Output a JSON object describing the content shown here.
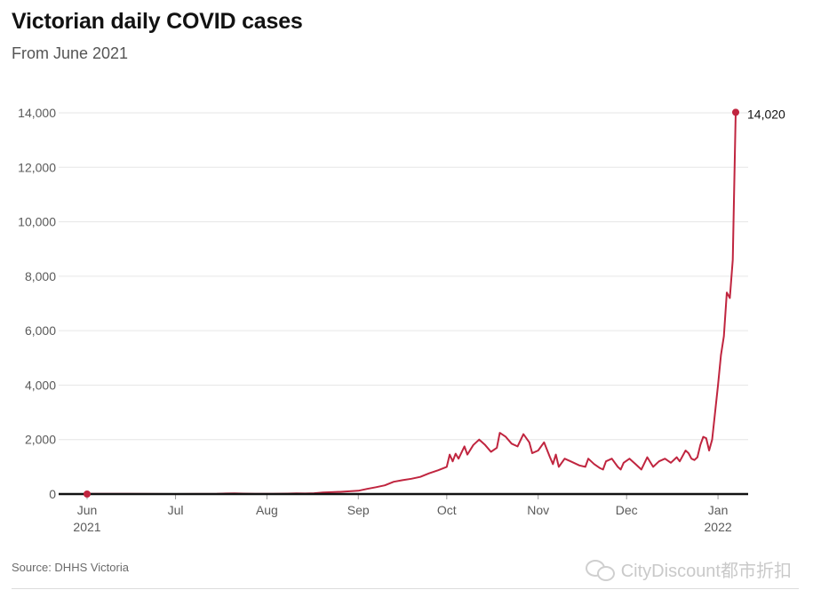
{
  "header": {
    "title": "Victorian daily COVID cases",
    "subtitle": "From June 2021"
  },
  "footer": {
    "source": "Source: DHHS Victoria",
    "watermark": "CityDiscount都市折扣"
  },
  "colors": {
    "line": "#c0253f",
    "grid": "#e6e6e6",
    "axis": "#121212",
    "tick_text": "#5a5a5a"
  },
  "chart_data": {
    "type": "line",
    "title": "Victorian daily COVID cases",
    "subtitle": "From June 2021",
    "xlabel": "",
    "ylabel": "",
    "ylim": [
      0,
      14000
    ],
    "yticks": [
      0,
      2000,
      4000,
      6000,
      8000,
      10000,
      12000,
      14000
    ],
    "ytick_labels": [
      "0",
      "2,000",
      "4,000",
      "6,000",
      "8,000",
      "10,000",
      "12,000",
      "14,000"
    ],
    "xlim": [
      "2021-06-01",
      "2022-01-08"
    ],
    "xticks": [
      {
        "date": "2021-06-01",
        "label": "Jun",
        "sublabel": "2021"
      },
      {
        "date": "2021-07-01",
        "label": "Jul",
        "sublabel": ""
      },
      {
        "date": "2021-08-01",
        "label": "Aug",
        "sublabel": ""
      },
      {
        "date": "2021-09-01",
        "label": "Sep",
        "sublabel": ""
      },
      {
        "date": "2021-10-01",
        "label": "Oct",
        "sublabel": ""
      },
      {
        "date": "2021-11-01",
        "label": "Nov",
        "sublabel": ""
      },
      {
        "date": "2021-12-01",
        "label": "Dec",
        "sublabel": ""
      },
      {
        "date": "2022-01-01",
        "label": "Jan",
        "sublabel": "2022"
      }
    ],
    "grid": true,
    "series": [
      {
        "color": "#c0253f",
        "points": [
          [
            "2021-06-01",
            5
          ],
          [
            "2021-06-15",
            5
          ],
          [
            "2021-07-01",
            0
          ],
          [
            "2021-07-15",
            5
          ],
          [
            "2021-07-18",
            20
          ],
          [
            "2021-07-21",
            25
          ],
          [
            "2021-07-24",
            15
          ],
          [
            "2021-07-28",
            5
          ],
          [
            "2021-08-03",
            5
          ],
          [
            "2021-08-08",
            15
          ],
          [
            "2021-08-11",
            25
          ],
          [
            "2021-08-14",
            20
          ],
          [
            "2021-08-17",
            30
          ],
          [
            "2021-08-20",
            60
          ],
          [
            "2021-08-23",
            70
          ],
          [
            "2021-08-26",
            80
          ],
          [
            "2021-08-29",
            100
          ],
          [
            "2021-09-01",
            120
          ],
          [
            "2021-09-04",
            190
          ],
          [
            "2021-09-07",
            250
          ],
          [
            "2021-09-10",
            320
          ],
          [
            "2021-09-13",
            450
          ],
          [
            "2021-09-16",
            510
          ],
          [
            "2021-09-19",
            560
          ],
          [
            "2021-09-22",
            630
          ],
          [
            "2021-09-25",
            760
          ],
          [
            "2021-09-28",
            870
          ],
          [
            "2021-10-01",
            1000
          ],
          [
            "2021-10-02",
            1450
          ],
          [
            "2021-10-03",
            1200
          ],
          [
            "2021-10-04",
            1480
          ],
          [
            "2021-10-05",
            1300
          ],
          [
            "2021-10-07",
            1750
          ],
          [
            "2021-10-08",
            1450
          ],
          [
            "2021-10-10",
            1800
          ],
          [
            "2021-10-12",
            2000
          ],
          [
            "2021-10-14",
            1800
          ],
          [
            "2021-10-16",
            1550
          ],
          [
            "2021-10-18",
            1700
          ],
          [
            "2021-10-19",
            2250
          ],
          [
            "2021-10-21",
            2100
          ],
          [
            "2021-10-23",
            1850
          ],
          [
            "2021-10-25",
            1750
          ],
          [
            "2021-10-27",
            2200
          ],
          [
            "2021-10-29",
            1900
          ],
          [
            "2021-10-30",
            1500
          ],
          [
            "2021-11-01",
            1600
          ],
          [
            "2021-11-03",
            1900
          ],
          [
            "2021-11-05",
            1350
          ],
          [
            "2021-11-06",
            1100
          ],
          [
            "2021-11-07",
            1450
          ],
          [
            "2021-11-08",
            1000
          ],
          [
            "2021-11-10",
            1300
          ],
          [
            "2021-11-12",
            1200
          ],
          [
            "2021-11-15",
            1050
          ],
          [
            "2021-11-17",
            1000
          ],
          [
            "2021-11-18",
            1300
          ],
          [
            "2021-11-20",
            1100
          ],
          [
            "2021-11-22",
            950
          ],
          [
            "2021-11-23",
            900
          ],
          [
            "2021-11-24",
            1200
          ],
          [
            "2021-11-26",
            1300
          ],
          [
            "2021-11-28",
            1000
          ],
          [
            "2021-11-29",
            900
          ],
          [
            "2021-11-30",
            1150
          ],
          [
            "2021-12-02",
            1300
          ],
          [
            "2021-12-04",
            1100
          ],
          [
            "2021-12-06",
            900
          ],
          [
            "2021-12-08",
            1350
          ],
          [
            "2021-12-10",
            1000
          ],
          [
            "2021-12-12",
            1200
          ],
          [
            "2021-12-14",
            1300
          ],
          [
            "2021-12-16",
            1150
          ],
          [
            "2021-12-18",
            1350
          ],
          [
            "2021-12-19",
            1200
          ],
          [
            "2021-12-21",
            1600
          ],
          [
            "2021-12-22",
            1500
          ],
          [
            "2021-12-23",
            1300
          ],
          [
            "2021-12-24",
            1250
          ],
          [
            "2021-12-25",
            1350
          ],
          [
            "2021-12-26",
            1800
          ],
          [
            "2021-12-27",
            2100
          ],
          [
            "2021-12-28",
            2050
          ],
          [
            "2021-12-29",
            1600
          ],
          [
            "2021-12-30",
            2000
          ],
          [
            "2021-12-31",
            3000
          ],
          [
            "2022-01-01",
            4000
          ],
          [
            "2022-01-02",
            5100
          ],
          [
            "2022-01-03",
            5800
          ],
          [
            "2022-01-04",
            7400
          ],
          [
            "2022-01-05",
            7200
          ],
          [
            "2022-01-06",
            8600
          ],
          [
            "2022-01-07",
            14020
          ]
        ]
      }
    ],
    "annotations": [
      {
        "date": "2021-06-01",
        "value": 0,
        "label": ""
      },
      {
        "date": "2022-01-07",
        "value": 14020,
        "label": "14,020"
      }
    ]
  }
}
